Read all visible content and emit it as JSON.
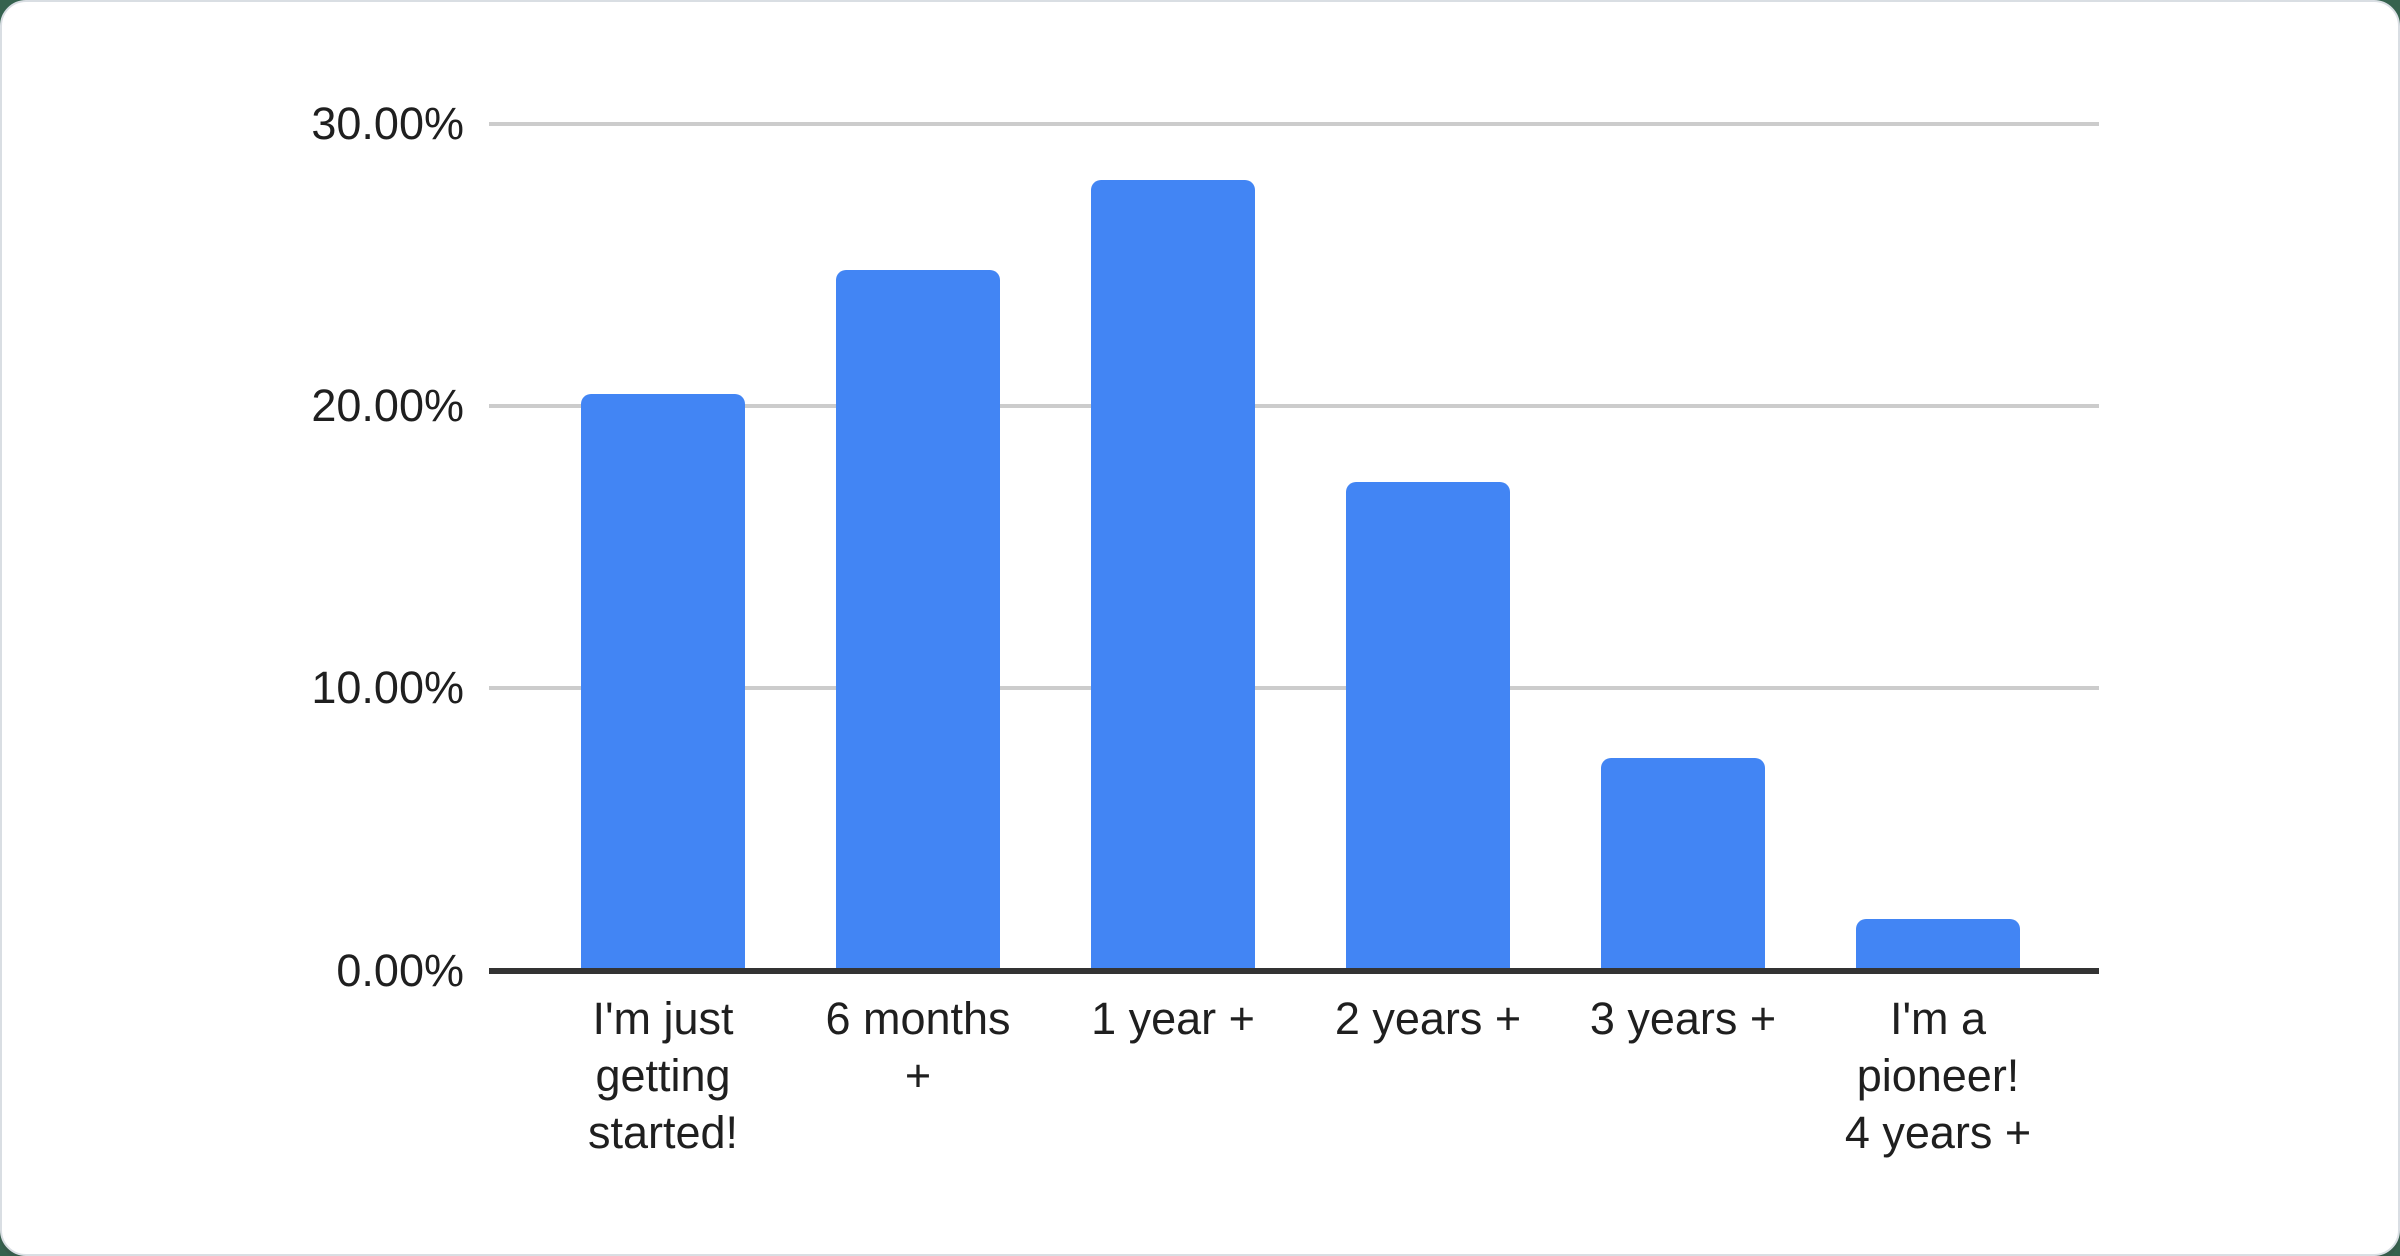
{
  "colors": {
    "bar": "#4285f4",
    "gridline": "#cccccc",
    "axis_line": "#333333",
    "label_text": "#1f1f1f",
    "card_background": "#ffffff",
    "page_background": "#35624e",
    "card_border": "#d9dee3"
  },
  "chart_data": {
    "type": "bar",
    "title": "",
    "xlabel": "",
    "ylabel": "",
    "categories": [
      "I'm just getting started!",
      "6 months +",
      "1 year +",
      "2 years +",
      "3 years +",
      "I'm a pioneer! 4 years +"
    ],
    "category_label_lines": [
      [
        "I'm just",
        "getting",
        "started!"
      ],
      [
        "6 months",
        "+"
      ],
      [
        "1 year +"
      ],
      [
        "2 years +"
      ],
      [
        "3 years +"
      ],
      [
        "I'm a",
        "pioneer!",
        "4 years +"
      ]
    ],
    "values": [
      20.4,
      24.8,
      28.0,
      17.3,
      7.5,
      1.8
    ],
    "value_unit": "%",
    "ylim": [
      0,
      30
    ],
    "yticks": [
      {
        "label": "0.00%",
        "value": 0
      },
      {
        "label": "10.00%",
        "value": 10
      },
      {
        "label": "20.00%",
        "value": 20
      },
      {
        "label": "30.00%",
        "value": 30
      }
    ],
    "grid": true,
    "legend": "none",
    "bar_color": "#4285f4"
  }
}
